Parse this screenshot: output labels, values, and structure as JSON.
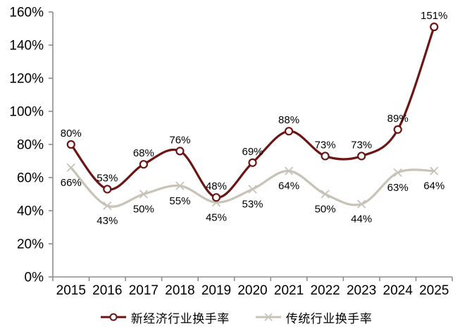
{
  "chart_data": {
    "type": "line",
    "title": "",
    "xlabel": "",
    "ylabel": "",
    "categories": [
      "2015",
      "2016",
      "2017",
      "2018",
      "2019",
      "2020",
      "2021",
      "2022",
      "2023",
      "2024",
      "2025"
    ],
    "series": [
      {
        "name": "新经济行业换手率",
        "values": [
          80,
          53,
          68,
          76,
          48,
          69,
          88,
          73,
          73,
          89,
          151
        ],
        "color": "#6b1515",
        "marker": "circle",
        "label_position": "above"
      },
      {
        "name": "传统行业换手率",
        "values": [
          66,
          43,
          50,
          55,
          45,
          53,
          64,
          50,
          44,
          63,
          64
        ],
        "color": "#c7c3b7",
        "marker": "x",
        "label_position": "below"
      }
    ],
    "ylim": [
      0,
      160
    ],
    "y_tick_step": 20,
    "y_tick_suffix": "%",
    "data_label_suffix": "%",
    "grid": false,
    "smooth": true,
    "legend_position": "bottom"
  },
  "style": {
    "axis_color": "#8e8e8e",
    "text_color": "#000000",
    "background": "#ffffff"
  }
}
